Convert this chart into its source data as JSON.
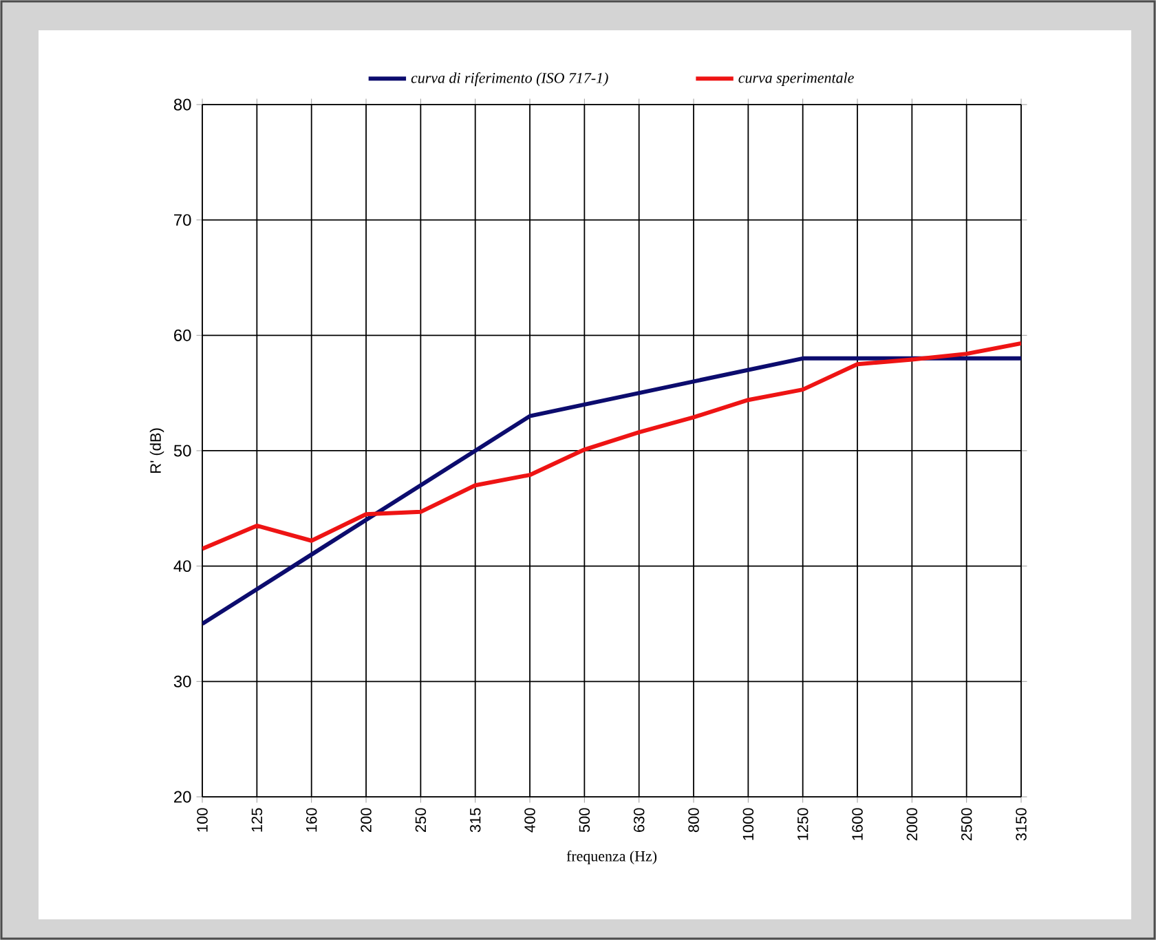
{
  "chart_data": {
    "type": "line",
    "xlabel": "frequenza (Hz)",
    "ylabel": "R' (dB)",
    "categories": [
      "100",
      "125",
      "160",
      "200",
      "250",
      "315",
      "400",
      "500",
      "630",
      "800",
      "1000",
      "1250",
      "1600",
      "2000",
      "2500",
      "3150"
    ],
    "series": [
      {
        "name": "curva di riferimento (ISO 717-1)",
        "color": "#0c0c6e",
        "values": [
          35,
          38,
          41,
          44,
          47,
          50,
          53,
          54,
          55,
          56,
          57,
          58,
          58,
          58,
          58,
          58
        ]
      },
      {
        "name": "curva sperimentale",
        "color": "#ee1414",
        "values": [
          41.5,
          43.5,
          42.2,
          44.5,
          44.7,
          47,
          47.9,
          50.1,
          51.6,
          52.9,
          54.4,
          55.3,
          57.5,
          57.9,
          58.4,
          59.3
        ]
      }
    ],
    "ylim": [
      20,
      80
    ],
    "yticks": [
      20,
      30,
      40,
      50,
      60,
      70,
      80
    ],
    "grid": true,
    "legend": "top",
    "marker": "none",
    "line_style": "solid"
  }
}
